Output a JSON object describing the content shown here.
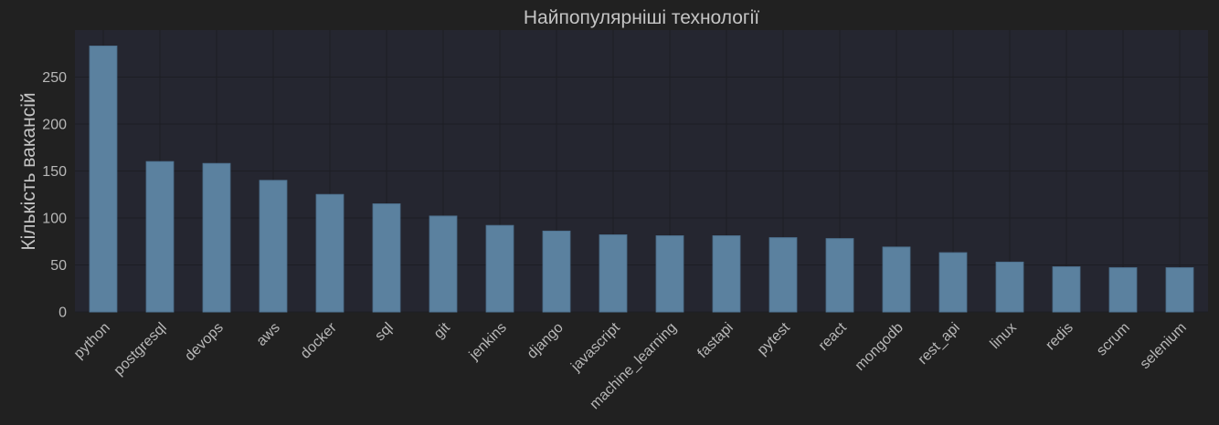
{
  "chart_data": {
    "type": "bar",
    "title": "Найпопулярніші технології",
    "xlabel": "",
    "ylabel": "Кількість вакансій",
    "categories": [
      "python",
      "postgresql",
      "devops",
      "aws",
      "docker",
      "sql",
      "git",
      "jenkins",
      "django",
      "javascript",
      "machine_learning",
      "fastapi",
      "pytest",
      "react",
      "mongodb",
      "rest_api",
      "linux",
      "redis",
      "scrum",
      "selenium"
    ],
    "values": [
      283,
      160,
      158,
      140,
      125,
      115,
      102,
      92,
      86,
      82,
      81,
      81,
      79,
      78,
      69,
      63,
      53,
      48,
      47,
      47
    ],
    "ylim": [
      0,
      300
    ],
    "yticks": [
      0,
      50,
      100,
      150,
      200,
      250
    ],
    "grid": true,
    "legend": "none",
    "colors": {
      "figure_bg": "#212121",
      "plot_bg": "#252630",
      "bar": "#5b819f",
      "bar_edge": "#4f7391",
      "grid": "#1d1e24",
      "text": "#c4c4c4",
      "tick_text": "#b8b8b8"
    }
  }
}
